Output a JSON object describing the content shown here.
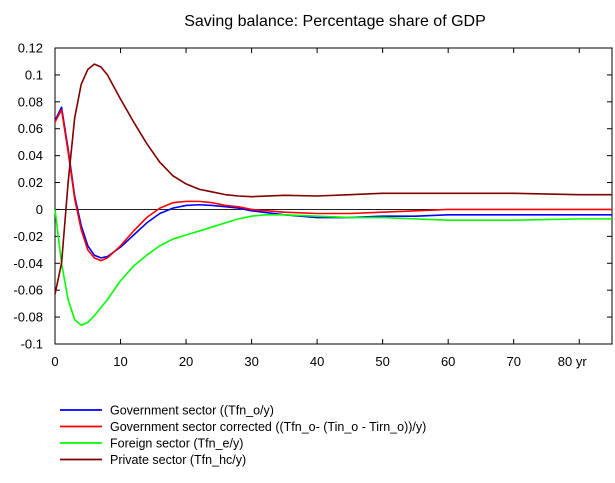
{
  "chart_data": {
    "type": "line",
    "title": "Saving balance: Percentage share of GDP",
    "xlabel": "",
    "ylabel": "",
    "x_unit_label": "yr",
    "xlim": [
      0,
      85
    ],
    "ylim": [
      -0.1,
      0.12
    ],
    "x_ticks": [
      0,
      10,
      20,
      30,
      40,
      50,
      60,
      70,
      80
    ],
    "x_tick_labels": [
      "0",
      "10",
      "20",
      "30",
      "40",
      "50",
      "60",
      "70",
      "80 yr"
    ],
    "y_ticks": [
      -0.1,
      -0.08,
      -0.06,
      -0.04,
      -0.02,
      0,
      0.02,
      0.04,
      0.06,
      0.08,
      0.1,
      0.12
    ],
    "y_tick_labels": [
      "-0.1",
      "-0.08",
      "-0.06",
      "-0.04",
      "-0.02",
      "0",
      "0.02",
      "0.04",
      "0.06",
      "0.08",
      "0.1",
      "0.12"
    ],
    "grid": false,
    "zero_line": true,
    "legend_position": "below",
    "series": [
      {
        "name": "Government sector ((Tfn_o/y)",
        "color": "#0000ff",
        "points": [
          [
            0,
            0.066
          ],
          [
            1,
            0.076
          ],
          [
            2,
            0.045
          ],
          [
            3,
            0.01
          ],
          [
            4,
            -0.012
          ],
          [
            5,
            -0.027
          ],
          [
            6,
            -0.034
          ],
          [
            7,
            -0.036
          ],
          [
            8,
            -0.035
          ],
          [
            10,
            -0.028
          ],
          [
            12,
            -0.019
          ],
          [
            14,
            -0.01
          ],
          [
            16,
            -0.003
          ],
          [
            18,
            0.001
          ],
          [
            20,
            0.003
          ],
          [
            22,
            0.0035
          ],
          [
            24,
            0.003
          ],
          [
            26,
            0.002
          ],
          [
            28,
            0.001
          ],
          [
            30,
            -0.001
          ],
          [
            35,
            -0.004
          ],
          [
            40,
            -0.006
          ],
          [
            45,
            -0.006
          ],
          [
            50,
            -0.005
          ],
          [
            55,
            -0.005
          ],
          [
            60,
            -0.004
          ],
          [
            70,
            -0.004
          ],
          [
            80,
            -0.004
          ],
          [
            85,
            -0.004
          ]
        ]
      },
      {
        "name": "Government sector corrected ((Tfn_o- (Tin_o - Tirn_o))/y)",
        "color": "#ff0000",
        "points": [
          [
            0,
            0.065
          ],
          [
            1,
            0.074
          ],
          [
            2,
            0.043
          ],
          [
            3,
            0.008
          ],
          [
            4,
            -0.015
          ],
          [
            5,
            -0.03
          ],
          [
            6,
            -0.036
          ],
          [
            7,
            -0.038
          ],
          [
            8,
            -0.036
          ],
          [
            10,
            -0.027
          ],
          [
            12,
            -0.016
          ],
          [
            14,
            -0.006
          ],
          [
            16,
            0.001
          ],
          [
            18,
            0.005
          ],
          [
            20,
            0.006
          ],
          [
            22,
            0.006
          ],
          [
            24,
            0.005
          ],
          [
            26,
            0.003
          ],
          [
            28,
            0.002
          ],
          [
            30,
            0.0
          ],
          [
            35,
            -0.002
          ],
          [
            40,
            -0.003
          ],
          [
            45,
            -0.003
          ],
          [
            50,
            -0.002
          ],
          [
            55,
            -0.001
          ],
          [
            60,
            0.0
          ],
          [
            70,
            0.0
          ],
          [
            80,
            0.0
          ],
          [
            85,
            0.0
          ]
        ]
      },
      {
        "name": "Foreign sector (Tfn_e/y)",
        "color": "#00ff00",
        "points": [
          [
            0,
            0.0
          ],
          [
            1,
            -0.04
          ],
          [
            2,
            -0.067
          ],
          [
            3,
            -0.082
          ],
          [
            4,
            -0.086
          ],
          [
            5,
            -0.084
          ],
          [
            6,
            -0.079
          ],
          [
            7,
            -0.073
          ],
          [
            8,
            -0.067
          ],
          [
            10,
            -0.053
          ],
          [
            12,
            -0.042
          ],
          [
            14,
            -0.034
          ],
          [
            16,
            -0.027
          ],
          [
            18,
            -0.022
          ],
          [
            20,
            -0.019
          ],
          [
            22,
            -0.016
          ],
          [
            24,
            -0.013
          ],
          [
            26,
            -0.01
          ],
          [
            28,
            -0.007
          ],
          [
            30,
            -0.005
          ],
          [
            32,
            -0.004
          ],
          [
            35,
            -0.004
          ],
          [
            40,
            -0.005
          ],
          [
            45,
            -0.006
          ],
          [
            50,
            -0.006
          ],
          [
            55,
            -0.007
          ],
          [
            60,
            -0.008
          ],
          [
            65,
            -0.008
          ],
          [
            70,
            -0.008
          ],
          [
            80,
            -0.007
          ],
          [
            85,
            -0.007
          ]
        ]
      },
      {
        "name": "Private sector (Tfn_hc/y)",
        "color": "#800000",
        "points": [
          [
            0,
            -0.063
          ],
          [
            1,
            -0.04
          ],
          [
            2,
            0.02
          ],
          [
            3,
            0.068
          ],
          [
            4,
            0.093
          ],
          [
            5,
            0.104
          ],
          [
            6,
            0.108
          ],
          [
            7,
            0.106
          ],
          [
            8,
            0.1
          ],
          [
            10,
            0.082
          ],
          [
            12,
            0.065
          ],
          [
            14,
            0.049
          ],
          [
            16,
            0.035
          ],
          [
            18,
            0.025
          ],
          [
            20,
            0.019
          ],
          [
            22,
            0.015
          ],
          [
            24,
            0.013
          ],
          [
            26,
            0.011
          ],
          [
            28,
            0.01
          ],
          [
            30,
            0.0095
          ],
          [
            35,
            0.0105
          ],
          [
            40,
            0.01
          ],
          [
            45,
            0.011
          ],
          [
            50,
            0.012
          ],
          [
            55,
            0.012
          ],
          [
            60,
            0.012
          ],
          [
            70,
            0.012
          ],
          [
            80,
            0.011
          ],
          [
            85,
            0.011
          ]
        ]
      }
    ]
  }
}
